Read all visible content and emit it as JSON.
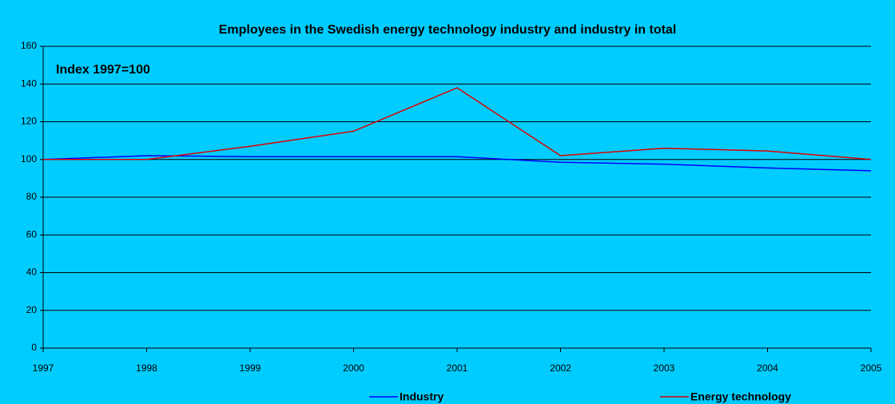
{
  "chart_data": {
    "type": "line",
    "title": "Employees in the Swedish energy technology industry and industry in total",
    "annotation": "Index 1997=100",
    "x": [
      1997,
      1998,
      1999,
      2000,
      2001,
      2002,
      2003,
      2004,
      2005
    ],
    "xlim": [
      1997,
      2005
    ],
    "xticks": [
      1997,
      1998,
      1999,
      2000,
      2001,
      2002,
      2003,
      2004,
      2005
    ],
    "ylim": [
      0,
      160
    ],
    "yticks": [
      0,
      20,
      40,
      60,
      80,
      100,
      120,
      140,
      160
    ],
    "grid": true,
    "legend": "bottom",
    "series": [
      {
        "name": "Industry",
        "color": "#0000ff",
        "values": [
          100,
          102,
          101.5,
          101.5,
          101.5,
          98.5,
          97.5,
          95.5,
          94
        ]
      },
      {
        "name": "Energy technology",
        "color": "#dd0000",
        "values": [
          100,
          100,
          107,
          115,
          138,
          102,
          106,
          104.5,
          100
        ]
      }
    ]
  }
}
